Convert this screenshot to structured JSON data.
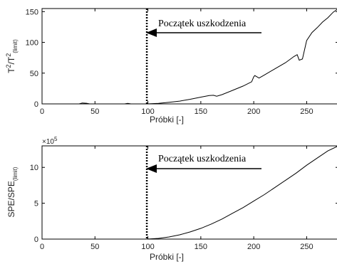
{
  "chart_data": [
    {
      "type": "line",
      "xlabel": "Próbki [-]",
      "ylabel_main": "T",
      "ylabel_sup1": "2",
      "ylabel_slash": "/T",
      "ylabel_sup2": "2",
      "ylabel_sub": "(limit)",
      "xlim": [
        0,
        280
      ],
      "ylim": [
        0,
        155
      ],
      "xticks": [
        0,
        50,
        100,
        150,
        200,
        250
      ],
      "yticks": [
        0,
        50,
        100,
        150
      ],
      "fault_start_x": 99,
      "annotation": "Początek uszkodzenia",
      "series": [
        {
          "x": [
            0,
            35,
            38,
            42,
            45,
            78,
            81,
            84,
            99,
            110,
            120,
            130,
            140,
            150,
            158,
            162,
            165,
            170,
            180,
            190,
            198,
            200,
            201,
            205,
            210,
            220,
            230,
            238,
            241,
            243,
            246,
            250,
            255,
            260,
            265,
            270,
            275,
            280
          ],
          "y": [
            0,
            0,
            1.5,
            1,
            0,
            0,
            0.8,
            0,
            0,
            0.8,
            2.5,
            4.5,
            7.5,
            11,
            13.5,
            14,
            12.5,
            15,
            22,
            29,
            36,
            44,
            46,
            42,
            47,
            57,
            67,
            77,
            80,
            71,
            73,
            103,
            116,
            124,
            133,
            140,
            149,
            157
          ]
        }
      ]
    },
    {
      "type": "line",
      "xlabel": "Próbki [-]",
      "ylabel_main": "SPE/SPE",
      "ylabel_sub": "(limit)",
      "exponent_base": "×10",
      "exponent_power": "5",
      "xlim": [
        0,
        280
      ],
      "ylim": [
        0,
        13
      ],
      "xticks": [
        0,
        50,
        100,
        150,
        200,
        250
      ],
      "yticks": [
        0,
        5,
        10
      ],
      "fault_start_x": 99,
      "annotation": "Początek uszkodzenia",
      "series": [
        {
          "x": [
            0,
            99,
            110,
            120,
            130,
            140,
            150,
            160,
            170,
            180,
            190,
            200,
            210,
            220,
            230,
            240,
            250,
            260,
            270,
            280
          ],
          "y": [
            0,
            0,
            0.1,
            0.3,
            0.6,
            1.0,
            1.5,
            2.1,
            2.8,
            3.6,
            4.4,
            5.3,
            6.2,
            7.2,
            8.2,
            9.2,
            10.3,
            11.3,
            12.3,
            13.3
          ]
        }
      ]
    }
  ]
}
